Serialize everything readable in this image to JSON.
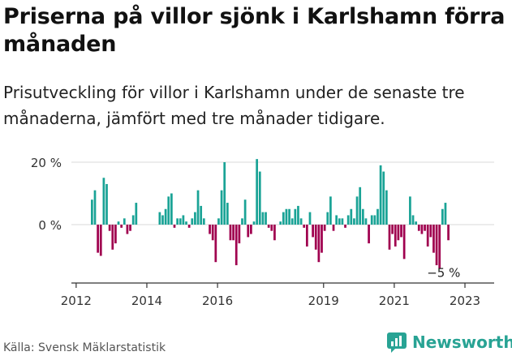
{
  "header": {
    "title": "Priserna på villor sjönk i Karlshamn förra månaden",
    "subtitle": "Prisutveckling för villor i Karlshamn under de senaste tre månaderna, jämfört med tre månader tidigare."
  },
  "footer": {
    "source": "Källa: Svensk Mäklarstatistik",
    "brand": "Newsworthy"
  },
  "colors": {
    "positive": "#1aa396",
    "negative": "#a0004f",
    "axis": "#333333",
    "grid": "#d9d9d9"
  },
  "chart_data": {
    "type": "bar",
    "start": "2012-06",
    "x_ticks": [
      "2012",
      "2014",
      "2016",
      "2019",
      "2021",
      "2023"
    ],
    "y_ticks": [
      "20 %",
      "0 %"
    ],
    "ylim": [
      -17,
      24
    ],
    "last_value_label": "−5 %",
    "values": [
      8,
      11,
      -9,
      -10,
      15,
      13,
      -2,
      -8,
      -6,
      1,
      -1,
      2,
      -3,
      -2,
      3,
      7,
      0,
      0,
      0,
      0,
      0,
      0,
      0,
      4,
      3,
      5,
      9,
      10,
      -1,
      2,
      2,
      3,
      1,
      -1,
      2,
      4,
      11,
      6,
      2,
      0,
      -3,
      -5,
      -12,
      2,
      11,
      20,
      7,
      -5,
      -5,
      -13,
      -6,
      2,
      8,
      -4,
      -3,
      1,
      21,
      17,
      4,
      4,
      -1,
      -2,
      -5,
      0,
      1,
      4,
      5,
      5,
      2,
      5,
      6,
      2,
      -1,
      -7,
      4,
      -4,
      -8,
      -12,
      -9,
      -2,
      4,
      9,
      -2,
      3,
      2,
      2,
      -1,
      3,
      5,
      2,
      9,
      12,
      5,
      2,
      -6,
      3,
      3,
      5,
      19,
      17,
      11,
      -8,
      -3,
      -7,
      -5,
      -4,
      -11,
      0,
      9,
      3,
      1,
      -2,
      -3,
      -2,
      -7,
      -4,
      -9,
      -13,
      -14,
      5,
      7,
      -5
    ]
  }
}
